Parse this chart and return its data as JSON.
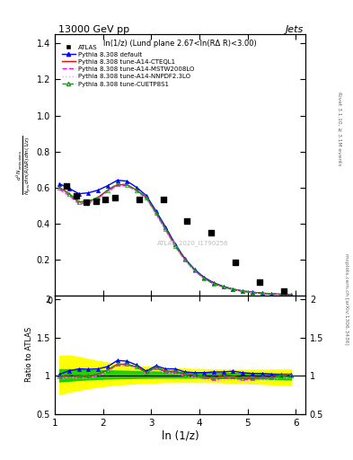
{
  "title_top": "13000 GeV pp",
  "title_right": "Jets",
  "panel_title": "ln(1/z) (Lund plane 2.67<ln(RΔ R)<3.00)",
  "watermark": "ATLAS_2020_I1790256",
  "xlabel": "ln (1/z)",
  "ylabel_ratio": "Ratio to ATLAS",
  "xlim": [
    1.0,
    6.2
  ],
  "ylim_main": [
    0.0,
    1.45
  ],
  "ylim_ratio": [
    0.5,
    2.05
  ],
  "yticks_main": [
    0.2,
    0.4,
    0.6,
    0.8,
    1.0,
    1.2,
    1.4
  ],
  "yticks_ratio": [
    0.5,
    1.0,
    1.5,
    2.0
  ],
  "xticks": [
    1,
    2,
    3,
    4,
    5,
    6
  ],
  "atlas_x": [
    1.25,
    1.45,
    1.65,
    1.85,
    2.05,
    2.25,
    2.75,
    3.25,
    3.75,
    4.25,
    4.75,
    5.25,
    5.75
  ],
  "atlas_y": [
    0.61,
    0.555,
    0.52,
    0.525,
    0.535,
    0.545,
    0.535,
    0.535,
    0.415,
    0.35,
    0.185,
    0.075,
    0.025
  ],
  "pythia_x": [
    1.1,
    1.3,
    1.5,
    1.7,
    1.9,
    2.1,
    2.3,
    2.5,
    2.7,
    2.9,
    3.1,
    3.3,
    3.5,
    3.7,
    3.9,
    4.1,
    4.3,
    4.5,
    4.7,
    4.9,
    5.1,
    5.3,
    5.5,
    5.7,
    5.9
  ],
  "default_y": [
    0.62,
    0.595,
    0.565,
    0.57,
    0.585,
    0.61,
    0.64,
    0.635,
    0.6,
    0.555,
    0.47,
    0.38,
    0.285,
    0.205,
    0.145,
    0.1,
    0.07,
    0.05,
    0.035,
    0.025,
    0.018,
    0.013,
    0.009,
    0.006,
    0.004
  ],
  "cteql1_y": [
    0.6,
    0.565,
    0.52,
    0.52,
    0.545,
    0.585,
    0.615,
    0.615,
    0.585,
    0.545,
    0.46,
    0.37,
    0.275,
    0.2,
    0.14,
    0.095,
    0.065,
    0.048,
    0.033,
    0.023,
    0.016,
    0.011,
    0.008,
    0.006,
    0.004
  ],
  "mstw_y": [
    0.59,
    0.555,
    0.51,
    0.515,
    0.54,
    0.58,
    0.61,
    0.61,
    0.58,
    0.54,
    0.455,
    0.365,
    0.272,
    0.198,
    0.138,
    0.093,
    0.063,
    0.046,
    0.032,
    0.022,
    0.015,
    0.011,
    0.007,
    0.005,
    0.003
  ],
  "nnpdf_y": [
    0.585,
    0.55,
    0.505,
    0.51,
    0.535,
    0.575,
    0.605,
    0.605,
    0.575,
    0.535,
    0.45,
    0.36,
    0.268,
    0.194,
    0.135,
    0.091,
    0.062,
    0.044,
    0.031,
    0.021,
    0.015,
    0.01,
    0.007,
    0.005,
    0.003
  ],
  "cuetp8s1_y": [
    0.6,
    0.565,
    0.52,
    0.525,
    0.545,
    0.585,
    0.62,
    0.615,
    0.585,
    0.545,
    0.46,
    0.37,
    0.276,
    0.201,
    0.141,
    0.095,
    0.065,
    0.047,
    0.033,
    0.023,
    0.016,
    0.011,
    0.008,
    0.006,
    0.004
  ],
  "default_ratio": [
    1.02,
    1.065,
    1.09,
    1.085,
    1.09,
    1.12,
    1.2,
    1.19,
    1.14,
    1.06,
    1.13,
    1.09,
    1.09,
    1.05,
    1.04,
    1.04,
    1.05,
    1.05,
    1.06,
    1.04,
    1.03,
    1.03,
    1.02,
    1.01,
    1.01
  ],
  "cteql1_ratio": [
    0.985,
    1.01,
    1.0,
    0.99,
    1.02,
    1.075,
    1.15,
    1.15,
    1.115,
    1.04,
    1.11,
    1.06,
    1.055,
    1.02,
    1.01,
    0.99,
    0.97,
    1.01,
    1.0,
    0.97,
    0.97,
    0.985,
    0.98,
    1.01,
    1.01
  ],
  "mstw_ratio": [
    0.97,
    0.99,
    0.98,
    0.98,
    1.01,
    1.065,
    1.14,
    1.14,
    1.11,
    1.035,
    1.1,
    1.05,
    1.045,
    1.015,
    1.0,
    0.975,
    0.945,
    0.97,
    0.97,
    0.95,
    0.95,
    0.978,
    0.97,
    1.0,
    0.975
  ],
  "nnpdf_ratio": [
    0.96,
    0.98,
    0.97,
    0.97,
    1.0,
    1.055,
    1.13,
    1.13,
    1.1,
    1.025,
    1.085,
    1.035,
    1.03,
    0.995,
    0.978,
    0.948,
    0.929,
    0.937,
    0.943,
    0.928,
    0.929,
    0.952,
    0.944,
    0.978,
    0.965
  ],
  "cuetp8s1_ratio": [
    0.985,
    1.01,
    1.0,
    1.0,
    1.02,
    1.075,
    1.155,
    1.15,
    1.115,
    1.04,
    1.11,
    1.06,
    1.058,
    1.028,
    1.014,
    0.988,
    0.971,
    0.99,
    0.99,
    0.967,
    0.968,
    0.985,
    0.978,
    1.005,
    1.005
  ],
  "error_band_green_lo": [
    0.925,
    0.935,
    0.945,
    0.952,
    0.958,
    0.963,
    0.966,
    0.969,
    0.972,
    0.974,
    0.976,
    0.977,
    0.977,
    0.976,
    0.975,
    0.974,
    0.972,
    0.97,
    0.968,
    0.966,
    0.963,
    0.96,
    0.957,
    0.954,
    0.95
  ],
  "error_band_green_hi": [
    1.085,
    1.085,
    1.082,
    1.078,
    1.074,
    1.07,
    1.067,
    1.064,
    1.061,
    1.058,
    1.055,
    1.052,
    1.05,
    1.047,
    1.045,
    1.043,
    1.041,
    1.039,
    1.037,
    1.035,
    1.034,
    1.032,
    1.03,
    1.029,
    1.028
  ],
  "error_band_yellow_lo": [
    0.76,
    0.79,
    0.815,
    0.838,
    0.857,
    0.872,
    0.884,
    0.893,
    0.901,
    0.908,
    0.913,
    0.917,
    0.919,
    0.92,
    0.92,
    0.919,
    0.917,
    0.914,
    0.91,
    0.906,
    0.901,
    0.895,
    0.889,
    0.882,
    0.875
  ],
  "error_band_yellow_hi": [
    1.26,
    1.265,
    1.245,
    1.218,
    1.193,
    1.172,
    1.154,
    1.14,
    1.128,
    1.118,
    1.11,
    1.103,
    1.097,
    1.092,
    1.088,
    1.085,
    1.083,
    1.08,
    1.079,
    1.078,
    1.078,
    1.078,
    1.079,
    1.08,
    1.082
  ],
  "color_default": "#0000ff",
  "color_cteql1": "#ff0000",
  "color_mstw": "#ff00ff",
  "color_nnpdf": "#ff99ff",
  "color_cuetp8s1": "#00aa00",
  "color_atlas": "#000000",
  "color_green_band": "#00cc00",
  "color_yellow_band": "#ffff00",
  "right_text1": "Rivet 3.1.10, ≥ 3.1M events",
  "right_text2": "mcplots.cern.ch [arXiv:1306.3436]"
}
